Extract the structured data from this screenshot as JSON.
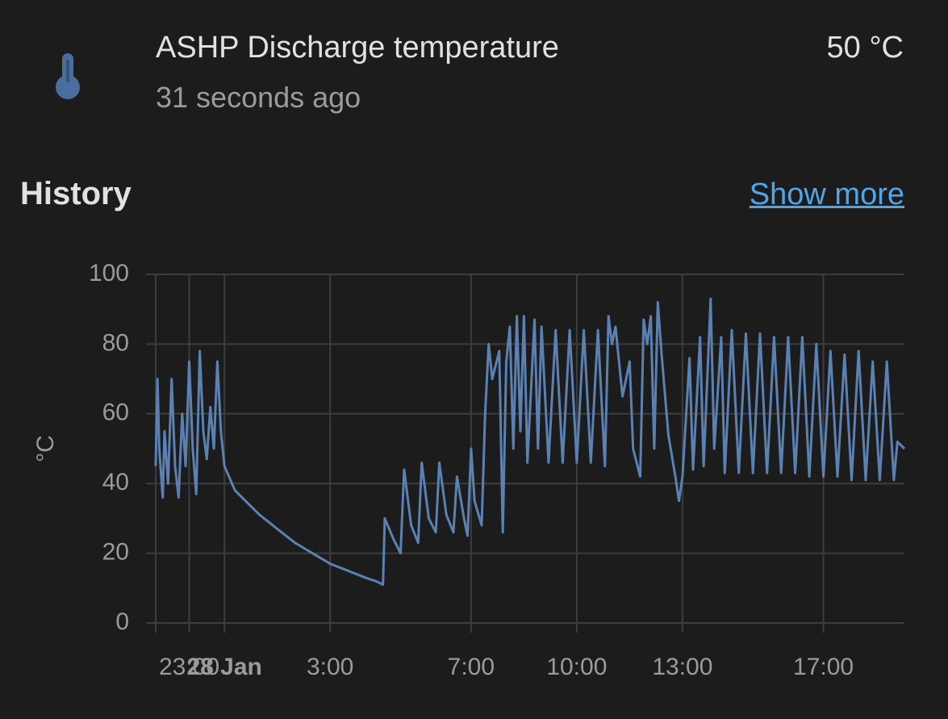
{
  "header": {
    "title": "ASHP Discharge temperature",
    "subtitle": "31 seconds ago",
    "state": "50 °C"
  },
  "history": {
    "heading": "History",
    "show_more": "Show more"
  },
  "chart_data": {
    "type": "line",
    "ylabel": "°C",
    "grid": true,
    "xlim": [
      -1.95,
      19.3
    ],
    "xticks": [
      {
        "value": -1,
        "label": "23:00"
      },
      {
        "value": 0,
        "label": "28 Jan"
      },
      {
        "value": 3,
        "label": "3:00"
      },
      {
        "value": 7,
        "label": "7:00"
      },
      {
        "value": 10,
        "label": "10:00"
      },
      {
        "value": 13,
        "label": "13:00"
      },
      {
        "value": 17,
        "label": "17:00"
      }
    ],
    "ylim": [
      0,
      100
    ],
    "yticks": [
      0,
      20,
      40,
      60,
      80,
      100
    ],
    "x": [
      -1.95,
      -1.9,
      -1.85,
      -1.75,
      -1.7,
      -1.6,
      -1.5,
      -1.4,
      -1.3,
      -1.2,
      -1.1,
      -1.0,
      -0.9,
      -0.8,
      -0.7,
      -0.6,
      -0.5,
      -0.4,
      -0.3,
      -0.2,
      -0.1,
      0,
      0.3,
      0.6,
      1,
      1.5,
      2,
      2.5,
      3,
      3.5,
      4,
      4.3,
      4.5,
      4.55,
      4.8,
      5,
      5.1,
      5.3,
      5.5,
      5.6,
      5.8,
      6.0,
      6.1,
      6.3,
      6.5,
      6.6,
      6.8,
      6.9,
      7.0,
      7.1,
      7.3,
      7.4,
      7.5,
      7.6,
      7.8,
      7.9,
      8.0,
      8.1,
      8.2,
      8.3,
      8.4,
      8.5,
      8.6,
      8.8,
      8.9,
      9.0,
      9.2,
      9.4,
      9.6,
      9.8,
      10,
      10.2,
      10.4,
      10.6,
      10.8,
      10.9,
      11.0,
      11.1,
      11.3,
      11.5,
      11.6,
      11.8,
      11.9,
      12.0,
      12.1,
      12.2,
      12.3,
      12.4,
      12.6,
      12.8,
      12.9,
      13.0,
      13.2,
      13.3,
      13.5,
      13.6,
      13.8,
      13.9,
      14.1,
      14.2,
      14.4,
      14.6,
      14.8,
      15.0,
      15.2,
      15.4,
      15.6,
      15.8,
      16.0,
      16.2,
      16.4,
      16.6,
      16.8,
      17.0,
      17.2,
      17.4,
      17.6,
      17.8,
      18.0,
      18.2,
      18.4,
      18.6,
      18.8,
      19.0,
      19.1,
      19.3
    ],
    "series": [
      {
        "color": "#5b81b3",
        "values": [
          45,
          70,
          50,
          36,
          55,
          40,
          70,
          45,
          36,
          60,
          45,
          75,
          50,
          37,
          78,
          55,
          47,
          62,
          50,
          75,
          55,
          45,
          38,
          35,
          31,
          27,
          23,
          20,
          17,
          15,
          13,
          12,
          11,
          30,
          24,
          20,
          44,
          28,
          23,
          46,
          30,
          26,
          46,
          31,
          26,
          42,
          30,
          25,
          50,
          35,
          28,
          60,
          80,
          70,
          78,
          26,
          75,
          85,
          50,
          88,
          55,
          88,
          46,
          87,
          50,
          85,
          46,
          84,
          46,
          84,
          46,
          84,
          46,
          84,
          45,
          88,
          80,
          85,
          65,
          75,
          50,
          42,
          87,
          80,
          88,
          50,
          92,
          78,
          54,
          42,
          35,
          42,
          76,
          44,
          82,
          45,
          93,
          50,
          82,
          43,
          84,
          43,
          83,
          43,
          83,
          43,
          82,
          43,
          82,
          43,
          82,
          42,
          80,
          42,
          78,
          42,
          77,
          41,
          78,
          41,
          75,
          41,
          75,
          41,
          52,
          50
        ]
      }
    ]
  }
}
